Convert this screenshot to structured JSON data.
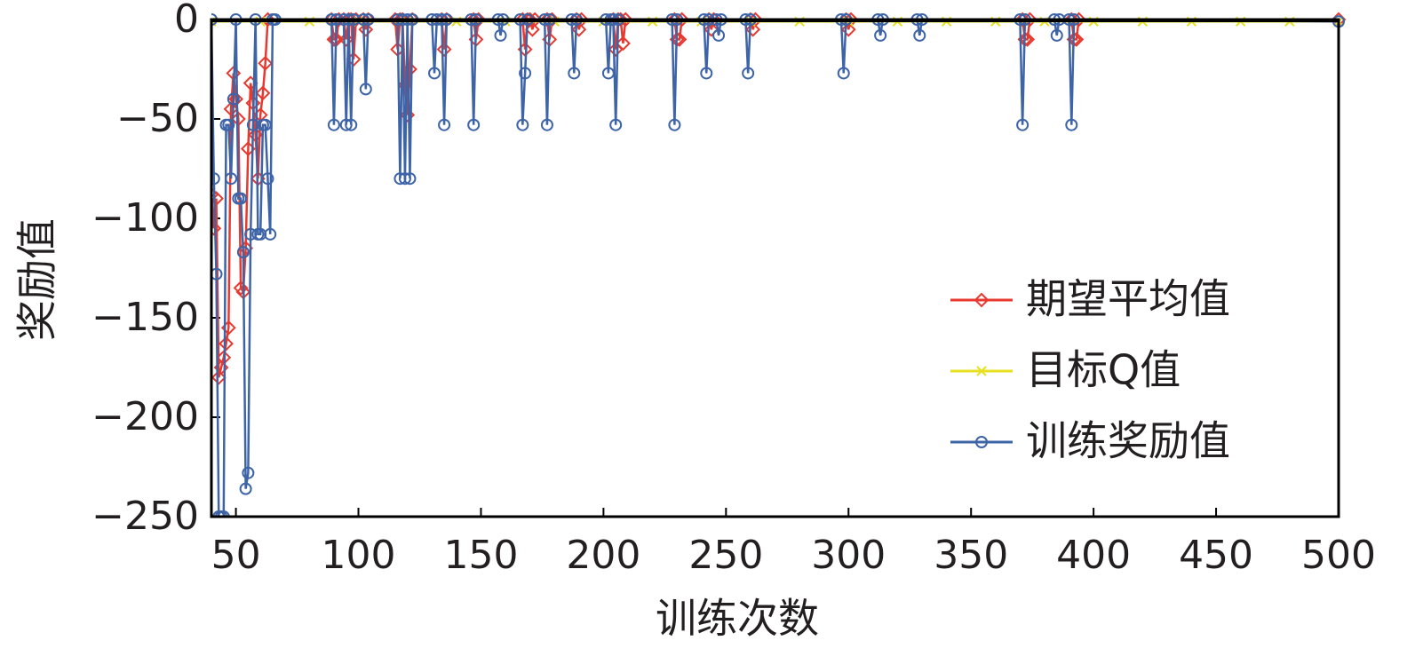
{
  "chart_data": {
    "type": "line",
    "xlabel": "训练次数",
    "ylabel": "奖励值",
    "xlim": [
      40,
      500
    ],
    "ylim": [
      -250,
      0
    ],
    "xticks": [
      50,
      100,
      150,
      200,
      250,
      300,
      350,
      400,
      450,
      500
    ],
    "yticks": [
      {
        "value": -250,
        "label": "−250"
      },
      {
        "value": -200,
        "label": "−200"
      },
      {
        "value": -150,
        "label": "−150"
      },
      {
        "value": -100,
        "label": "−100"
      },
      {
        "value": -50,
        "label": "−50"
      },
      0
    ],
    "legend": "lower right",
    "series": [
      {
        "name": "期望平均值",
        "color": "#e8392f",
        "marker": "diamond",
        "x": [
          40,
          41,
          42,
          43,
          44,
          45,
          46,
          47,
          48,
          49,
          50,
          51,
          52,
          53,
          54,
          55,
          56,
          57,
          58,
          59,
          60,
          61,
          62,
          63,
          89,
          90,
          91,
          92,
          94,
          95,
          96,
          97,
          98,
          99,
          102,
          103,
          104,
          115,
          116,
          117,
          118,
          119,
          120,
          121,
          122,
          134,
          135,
          136,
          147,
          148,
          149,
          167,
          168,
          169,
          170,
          171,
          172,
          177,
          178,
          179,
          189,
          190,
          191,
          204,
          205,
          206,
          207,
          208,
          209,
          229,
          230,
          231,
          232,
          243,
          244,
          245,
          260,
          261,
          262,
          299,
          300,
          301,
          371,
          372,
          373,
          374,
          391,
          392,
          393,
          394,
          500
        ],
        "values": [
          -88,
          -105,
          -90,
          -180,
          -175,
          -170,
          -163,
          -155,
          -45,
          -27,
          -40,
          -50,
          -135,
          -137,
          -115,
          -65,
          -32,
          -42,
          -58,
          -80,
          -48,
          -37,
          -22,
          0,
          0,
          -10,
          -10,
          0,
          0,
          -10,
          0,
          0,
          -20,
          0,
          0,
          -5,
          0,
          0,
          -15,
          0,
          0,
          -33,
          -48,
          -25,
          0,
          0,
          -15,
          0,
          0,
          -10,
          0,
          0,
          -15,
          0,
          0,
          -5,
          0,
          0,
          -10,
          0,
          0,
          -5,
          0,
          0,
          -15,
          0,
          0,
          -12,
          0,
          0,
          -10,
          -10,
          0,
          0,
          -5,
          0,
          0,
          -5,
          0,
          0,
          -5,
          0,
          0,
          -10,
          -10,
          0,
          0,
          -10,
          -10,
          0,
          0
        ]
      },
      {
        "name": "目标Q值",
        "color": "#e6e020",
        "marker": "x",
        "x": [
          40,
          60,
          80,
          100,
          120,
          140,
          160,
          180,
          200,
          220,
          240,
          260,
          280,
          300,
          320,
          340,
          360,
          380,
          400,
          420,
          440,
          460,
          480,
          500
        ],
        "values": [
          -1,
          -1,
          -1,
          -1,
          -1,
          -1,
          -1,
          -1,
          -1,
          -1,
          -1,
          -1,
          -1,
          -1,
          -1,
          -1,
          -1,
          -1,
          -1,
          -1,
          -1,
          -1,
          -1,
          -1
        ]
      },
      {
        "name": "训练奖励值",
        "color": "#3e64a8",
        "marker": "circle",
        "x": [
          40,
          41,
          42,
          43,
          44,
          45,
          46,
          47,
          48,
          49,
          50,
          51,
          52,
          53,
          54,
          55,
          56,
          57,
          58,
          59,
          60,
          61,
          62,
          63,
          64,
          65,
          66,
          89,
          90,
          91,
          94,
          95,
          96,
          97,
          98,
          102,
          103,
          104,
          116,
          117,
          118,
          119,
          120,
          121,
          122,
          130,
          131,
          132,
          134,
          135,
          136,
          146,
          147,
          148,
          157,
          158,
          159,
          166,
          167,
          168,
          169,
          176,
          177,
          178,
          187,
          188,
          189,
          201,
          202,
          203,
          204,
          205,
          206,
          228,
          229,
          230,
          241,
          242,
          243,
          246,
          247,
          248,
          258,
          259,
          260,
          297,
          298,
          299,
          312,
          313,
          314,
          328,
          329,
          330,
          370,
          371,
          372,
          384,
          385,
          386,
          390,
          391,
          392,
          500
        ],
        "values": [
          0,
          -80,
          -128,
          -250,
          -250,
          -250,
          -53,
          -53,
          -80,
          -40,
          0,
          -90,
          -90,
          -117,
          -236,
          -228,
          -108,
          -53,
          0,
          -108,
          -108,
          -53,
          -53,
          -80,
          -108,
          0,
          0,
          0,
          -53,
          0,
          0,
          -53,
          0,
          -53,
          0,
          0,
          -35,
          0,
          0,
          -80,
          0,
          -80,
          0,
          -80,
          0,
          0,
          -27,
          0,
          0,
          -53,
          0,
          0,
          -53,
          0,
          0,
          -8,
          0,
          0,
          -53,
          -27,
          0,
          0,
          -53,
          0,
          0,
          -27,
          0,
          0,
          -27,
          0,
          0,
          -53,
          0,
          0,
          -53,
          0,
          0,
          -27,
          0,
          0,
          -8,
          0,
          0,
          -27,
          0,
          0,
          -27,
          0,
          0,
          -8,
          0,
          0,
          -8,
          0,
          0,
          -53,
          0,
          0,
          -8,
          0,
          0,
          -53,
          0,
          -1
        ]
      }
    ]
  }
}
